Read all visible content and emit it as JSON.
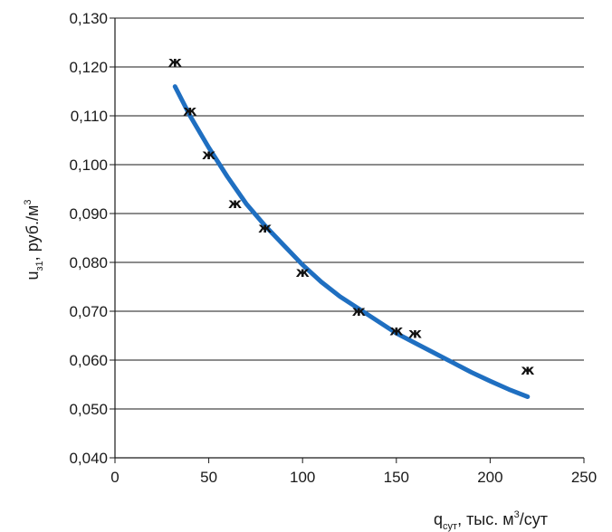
{
  "chart_data": {
    "type": "scatter",
    "title": "",
    "xlabel": {
      "main": "q",
      "sub": "сут",
      "rest": ", тыс. м",
      "sup": "3",
      "tail": "/сут"
    },
    "ylabel": {
      "main": "u",
      "sub": "з1",
      "rest": ", руб./м",
      "sup": "3"
    },
    "xlim": [
      0,
      250
    ],
    "ylim": [
      0.04,
      0.13
    ],
    "x_ticks": [
      0,
      50,
      100,
      150,
      200,
      250
    ],
    "x_tick_labels": [
      "0",
      "50",
      "100",
      "150",
      "200",
      "250"
    ],
    "y_ticks": [
      0.04,
      0.05,
      0.06,
      0.07,
      0.08,
      0.09,
      0.1,
      0.11,
      0.12,
      0.13
    ],
    "y_tick_labels": [
      "0,040",
      "0,050",
      "0,060",
      "0,070",
      "0,080",
      "0,090",
      "0,100",
      "0,110",
      "0,120",
      "0,130"
    ],
    "grid": "horizontal",
    "marker_symbol": "ж",
    "series": [
      {
        "type": "scatter",
        "x": [
          32,
          40,
          50,
          64,
          80,
          100,
          130,
          150,
          160,
          220
        ],
        "y": [
          0.121,
          0.111,
          0.102,
          0.092,
          0.087,
          0.078,
          0.07,
          0.066,
          0.0655,
          0.058
        ]
      },
      {
        "type": "line",
        "color": "#1f6fc1",
        "x": [
          32,
          40,
          50,
          60,
          70,
          80,
          90,
          100,
          110,
          120,
          130,
          140,
          150,
          160,
          170,
          180,
          190,
          200,
          210,
          220
        ],
        "y": [
          0.116,
          0.11,
          0.1035,
          0.0975,
          0.092,
          0.0875,
          0.0835,
          0.0795,
          0.076,
          0.073,
          0.0705,
          0.068,
          0.0655,
          0.0635,
          0.0615,
          0.0595,
          0.0575,
          0.0557,
          0.054,
          0.0525
        ]
      }
    ]
  }
}
